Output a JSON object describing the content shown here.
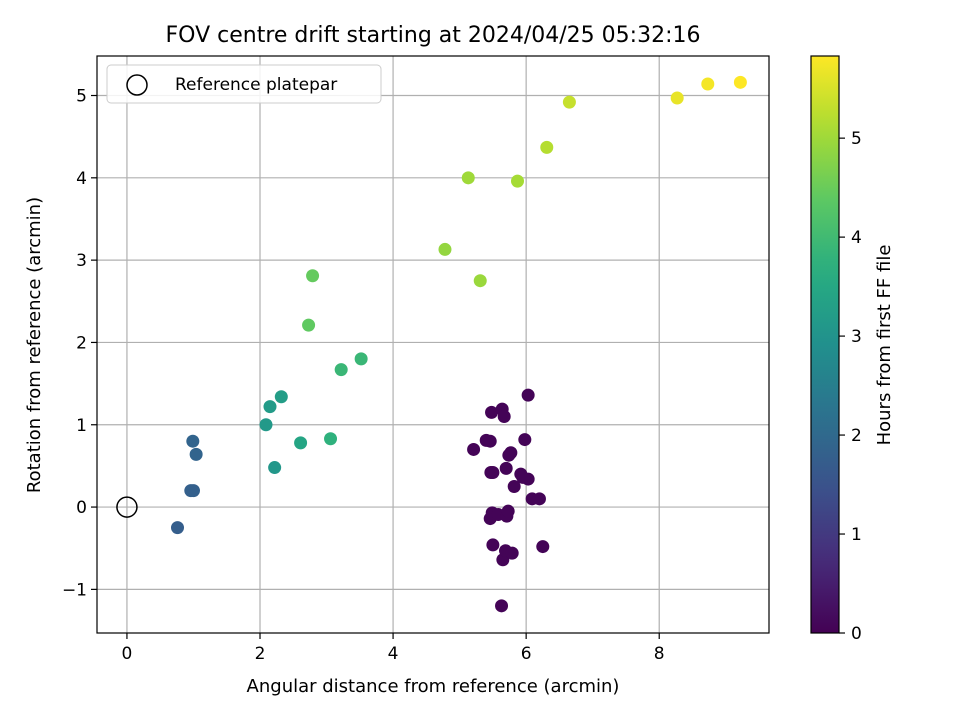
{
  "chart_data": {
    "type": "scatter",
    "title": "FOV centre drift starting at 2024/04/25 05:32:16",
    "xlabel": "Angular distance from reference (arcmin)",
    "ylabel": "Rotation from reference (arcmin)",
    "xlim": [
      -0.45,
      9.65
    ],
    "ylim": [
      -1.53,
      5.48
    ],
    "xticks": [
      0,
      2,
      4,
      6,
      8
    ],
    "yticks": [
      -1,
      0,
      1,
      2,
      3,
      4,
      5
    ],
    "xtick_labels": [
      "0",
      "2",
      "4",
      "6",
      "8"
    ],
    "ytick_labels": [
      "−1",
      "0",
      "1",
      "2",
      "3",
      "4",
      "5"
    ],
    "grid": true,
    "legend": {
      "placement": "upper-left",
      "entries": [
        "Reference platepar"
      ]
    },
    "reference_point": {
      "name": "Reference platepar",
      "x": 0,
      "y": 0
    },
    "colorbar": {
      "label": "Hours from first FF file",
      "colormap": "viridis",
      "range": [
        0,
        5.83
      ],
      "ticks": [
        0,
        1,
        2,
        3,
        4,
        5
      ],
      "tick_labels": [
        "0",
        "1",
        "2",
        "3",
        "4",
        "5"
      ]
    },
    "points": [
      {
        "x": 5.63,
        "y": -1.2,
        "t": 0.05
      },
      {
        "x": 5.65,
        "y": -0.64,
        "t": 0.05
      },
      {
        "x": 5.69,
        "y": -0.53,
        "t": 0.05
      },
      {
        "x": 5.79,
        "y": -0.56,
        "t": 0.05
      },
      {
        "x": 5.5,
        "y": -0.46,
        "t": 0.05
      },
      {
        "x": 6.25,
        "y": -0.48,
        "t": 0.05
      },
      {
        "x": 5.46,
        "y": -0.14,
        "t": 0.05
      },
      {
        "x": 5.49,
        "y": -0.07,
        "t": 0.05
      },
      {
        "x": 5.58,
        "y": -0.09,
        "t": 0.05
      },
      {
        "x": 5.71,
        "y": -0.11,
        "t": 0.05
      },
      {
        "x": 5.73,
        "y": -0.05,
        "t": 0.05
      },
      {
        "x": 6.09,
        "y": 0.1,
        "t": 0.05
      },
      {
        "x": 6.2,
        "y": 0.1,
        "t": 0.05
      },
      {
        "x": 5.82,
        "y": 0.25,
        "t": 0.05
      },
      {
        "x": 6.03,
        "y": 0.34,
        "t": 0.05
      },
      {
        "x": 5.92,
        "y": 0.4,
        "t": 0.05
      },
      {
        "x": 5.95,
        "y": 0.36,
        "t": 0.05
      },
      {
        "x": 5.47,
        "y": 0.42,
        "t": 0.05
      },
      {
        "x": 5.5,
        "y": 0.42,
        "t": 0.05
      },
      {
        "x": 5.7,
        "y": 0.47,
        "t": 0.05
      },
      {
        "x": 5.74,
        "y": 0.63,
        "t": 0.05
      },
      {
        "x": 5.77,
        "y": 0.66,
        "t": 0.05
      },
      {
        "x": 5.21,
        "y": 0.7,
        "t": 0.05
      },
      {
        "x": 5.4,
        "y": 0.81,
        "t": 0.05
      },
      {
        "x": 5.46,
        "y": 0.8,
        "t": 0.05
      },
      {
        "x": 5.98,
        "y": 0.82,
        "t": 0.05
      },
      {
        "x": 5.48,
        "y": 1.15,
        "t": 0.05
      },
      {
        "x": 5.64,
        "y": 1.19,
        "t": 0.05
      },
      {
        "x": 5.67,
        "y": 1.1,
        "t": 0.05
      },
      {
        "x": 6.03,
        "y": 1.36,
        "t": 0.05
      },
      {
        "x": 0.76,
        "y": -0.25,
        "t": 1.75
      },
      {
        "x": 0.96,
        "y": 0.2,
        "t": 1.8
      },
      {
        "x": 1.0,
        "y": 0.2,
        "t": 1.8
      },
      {
        "x": 1.04,
        "y": 0.64,
        "t": 1.9
      },
      {
        "x": 0.99,
        "y": 0.8,
        "t": 1.9
      },
      {
        "x": 2.22,
        "y": 0.48,
        "t": 3.1
      },
      {
        "x": 2.09,
        "y": 1.0,
        "t": 3.15
      },
      {
        "x": 2.15,
        "y": 1.22,
        "t": 3.2
      },
      {
        "x": 2.32,
        "y": 1.34,
        "t": 3.25
      },
      {
        "x": 2.61,
        "y": 0.78,
        "t": 3.45
      },
      {
        "x": 3.06,
        "y": 0.83,
        "t": 3.75
      },
      {
        "x": 3.22,
        "y": 1.67,
        "t": 3.9
      },
      {
        "x": 3.52,
        "y": 1.8,
        "t": 3.9
      },
      {
        "x": 2.73,
        "y": 2.21,
        "t": 4.4
      },
      {
        "x": 2.79,
        "y": 2.81,
        "t": 4.45
      },
      {
        "x": 4.78,
        "y": 3.13,
        "t": 4.9
      },
      {
        "x": 5.31,
        "y": 2.75,
        "t": 4.95
      },
      {
        "x": 5.13,
        "y": 4.0,
        "t": 5.0
      },
      {
        "x": 5.87,
        "y": 3.96,
        "t": 5.05
      },
      {
        "x": 6.31,
        "y": 4.37,
        "t": 5.2
      },
      {
        "x": 6.65,
        "y": 4.92,
        "t": 5.35
      },
      {
        "x": 8.27,
        "y": 4.97,
        "t": 5.65
      },
      {
        "x": 8.73,
        "y": 5.14,
        "t": 5.75
      },
      {
        "x": 9.22,
        "y": 5.16,
        "t": 5.83
      }
    ]
  }
}
